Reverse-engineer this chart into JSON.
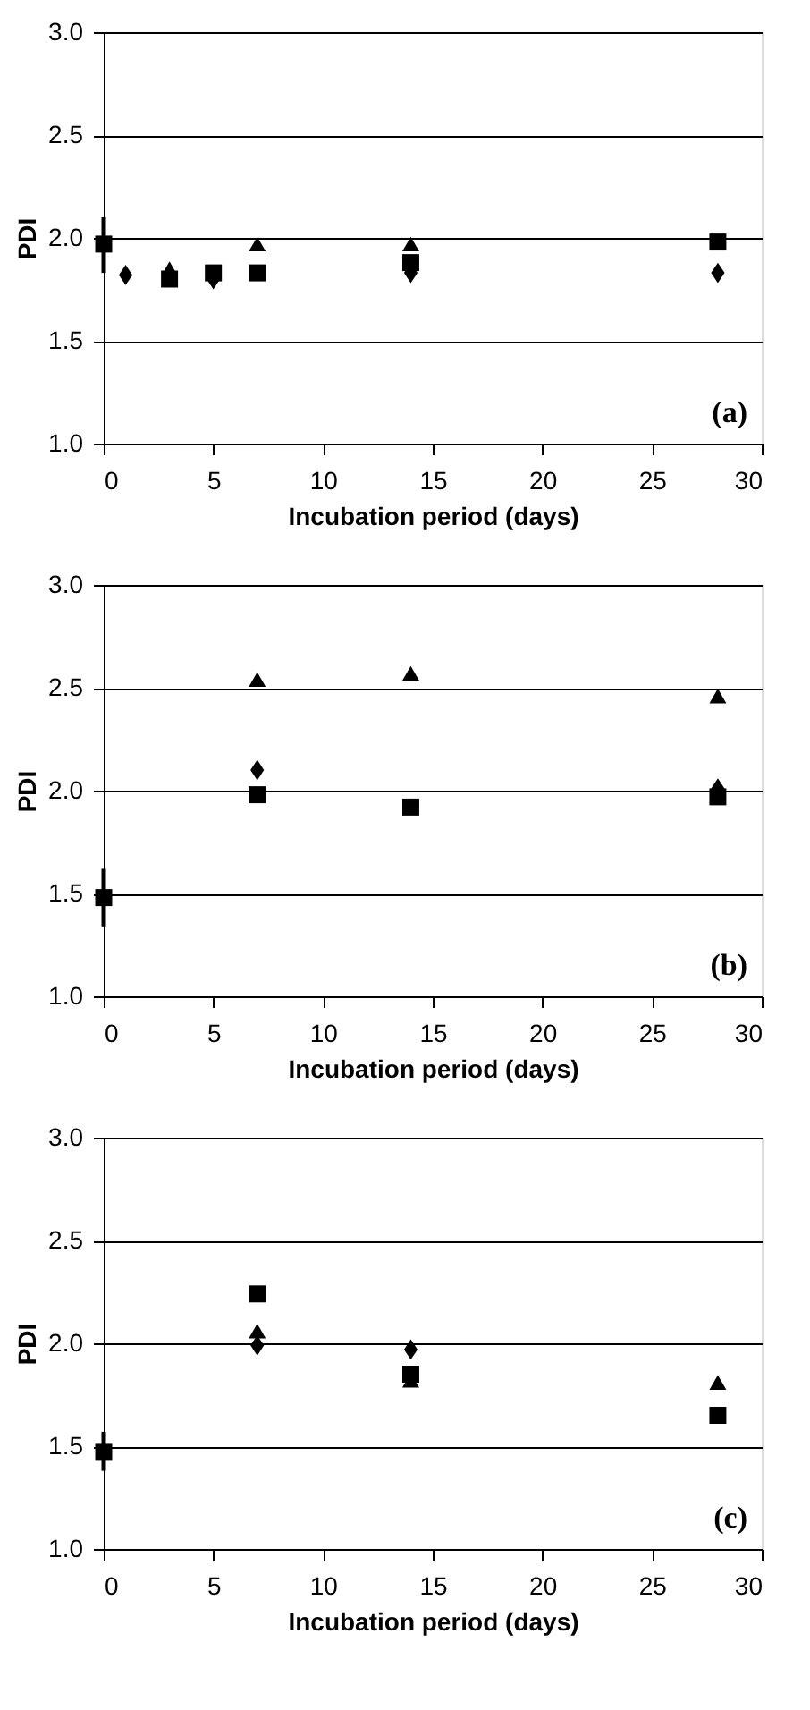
{
  "chart_data": [
    {
      "type": "scatter",
      "xlabel": "Incubation period (days)",
      "ylabel": "PDI",
      "xlim": [
        0,
        30
      ],
      "xticks": [
        0,
        5,
        10,
        15,
        20,
        25,
        30
      ],
      "ylim": [
        1.0,
        3.0
      ],
      "yticks": [
        {
          "value": 1.0,
          "label": "1.0"
        },
        {
          "value": 1.5,
          "label": "1.5"
        },
        {
          "value": 2.0,
          "label": "2.0"
        },
        {
          "value": 2.5,
          "label": "2.5"
        },
        {
          "value": 3.0,
          "label": "3.0"
        }
      ],
      "grid": "y",
      "annotations": [
        "(a)"
      ],
      "series": [
        {
          "color": "#000000",
          "marker": "diamond",
          "x": [
            1,
            5,
            14,
            28
          ],
          "values": [
            1.82,
            1.8,
            1.83,
            1.83
          ]
        },
        {
          "color": "#000000",
          "marker": "square",
          "x": [
            0,
            3,
            5,
            7,
            14,
            28
          ],
          "values": [
            1.97,
            1.8,
            1.83,
            1.83,
            1.88,
            1.98
          ],
          "errors": [
            [
              1.83,
              2.1
            ],
            null,
            null,
            null,
            null,
            null
          ]
        },
        {
          "color": "#000000",
          "marker": "triangle",
          "x": [
            3,
            7,
            14
          ],
          "values": [
            1.85,
            1.97,
            1.97
          ]
        }
      ]
    },
    {
      "type": "scatter",
      "xlabel": "Incubation period (days)",
      "ylabel": "PDI",
      "xlim": [
        0,
        30
      ],
      "xticks": [
        0,
        5,
        10,
        15,
        20,
        25,
        30
      ],
      "ylim": [
        1.0,
        3.0
      ],
      "yticks": [
        {
          "value": 1.0,
          "label": "1.0"
        },
        {
          "value": 1.5,
          "label": "1.5"
        },
        {
          "value": 2.0,
          "label": "2.0"
        },
        {
          "value": 2.5,
          "label": "2.5"
        },
        {
          "value": 3.0,
          "label": "3.0"
        }
      ],
      "grid": "y",
      "annotations": [
        "(b)"
      ],
      "series": [
        {
          "color": "#000000",
          "marker": "diamond",
          "x": [
            7,
            28
          ],
          "values": [
            2.1,
            2.01
          ]
        },
        {
          "color": "#000000",
          "marker": "square",
          "x": [
            0,
            7,
            14,
            28
          ],
          "values": [
            1.48,
            1.98,
            1.92,
            1.97
          ],
          "errors": [
            [
              1.34,
              1.62
            ],
            null,
            null,
            null
          ]
        },
        {
          "color": "#000000",
          "marker": "triangle",
          "x": [
            7,
            14,
            28
          ],
          "values": [
            2.54,
            2.57,
            2.46
          ]
        }
      ]
    },
    {
      "type": "scatter",
      "xlabel": "Incubation period (days)",
      "ylabel": "PDI",
      "xlim": [
        0,
        30
      ],
      "xticks": [
        0,
        5,
        10,
        15,
        20,
        25,
        30
      ],
      "ylim": [
        1.0,
        3.0
      ],
      "yticks": [
        {
          "value": 1.0,
          "label": "1.0"
        },
        {
          "value": 1.5,
          "label": "1.5"
        },
        {
          "value": 2.0,
          "label": "2.0"
        },
        {
          "value": 2.5,
          "label": "2.5"
        },
        {
          "value": 3.0,
          "label": "3.0"
        }
      ],
      "grid": "y",
      "annotations": [
        "(c)"
      ],
      "series": [
        {
          "color": "#000000",
          "marker": "diamond",
          "x": [
            7,
            14
          ],
          "values": [
            1.99,
            1.97
          ]
        },
        {
          "color": "#000000",
          "marker": "square",
          "x": [
            0,
            7,
            14,
            28
          ],
          "values": [
            1.47,
            2.24,
            1.85,
            1.65
          ],
          "errors": [
            [
              1.38,
              1.57
            ],
            null,
            null,
            null
          ]
        },
        {
          "color": "#000000",
          "marker": "triangle",
          "x": [
            7,
            14,
            28
          ],
          "values": [
            2.06,
            1.82,
            1.81
          ]
        }
      ]
    }
  ]
}
